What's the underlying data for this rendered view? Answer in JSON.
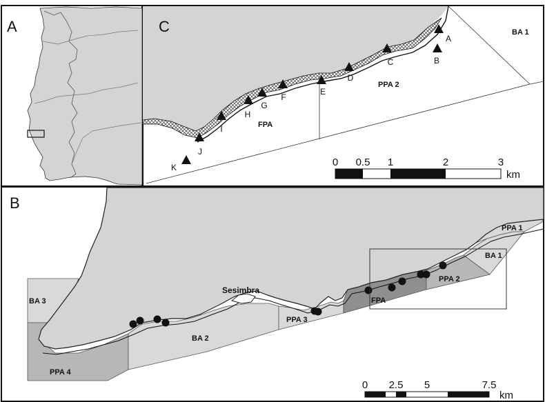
{
  "panels": {
    "a": "A",
    "b": "B",
    "c": "C"
  },
  "panel_c": {
    "zones": {
      "ba1": "BA 1",
      "ppa2": "PPA 2",
      "fpa": "FPA"
    },
    "sites": [
      "A",
      "B",
      "C",
      "D",
      "E",
      "F",
      "G",
      "H",
      "I",
      "J",
      "K"
    ],
    "scale": {
      "ticks": [
        "0",
        "0.5",
        "1",
        "2",
        "3"
      ],
      "unit": "km"
    }
  },
  "panel_b": {
    "zones": {
      "ppa1": "PPA 1",
      "ba1": "BA 1",
      "ppa2": "PPA 2",
      "fpa": "FPA",
      "ppa3": "PPA 3",
      "ba2": "BA 2",
      "ba3": "BA 3",
      "ppa4": "PPA 4"
    },
    "town": "Sesimbra",
    "scale": {
      "ticks": [
        "0",
        "2.5",
        "5",
        "7.5"
      ],
      "unit": "km"
    }
  },
  "colors": {
    "land": "#d4d4d4",
    "zone_light": "#d9d9d9",
    "zone_mid": "#b7b7b7",
    "zone_dark": "#8f8f8f",
    "outline": "#111111"
  }
}
